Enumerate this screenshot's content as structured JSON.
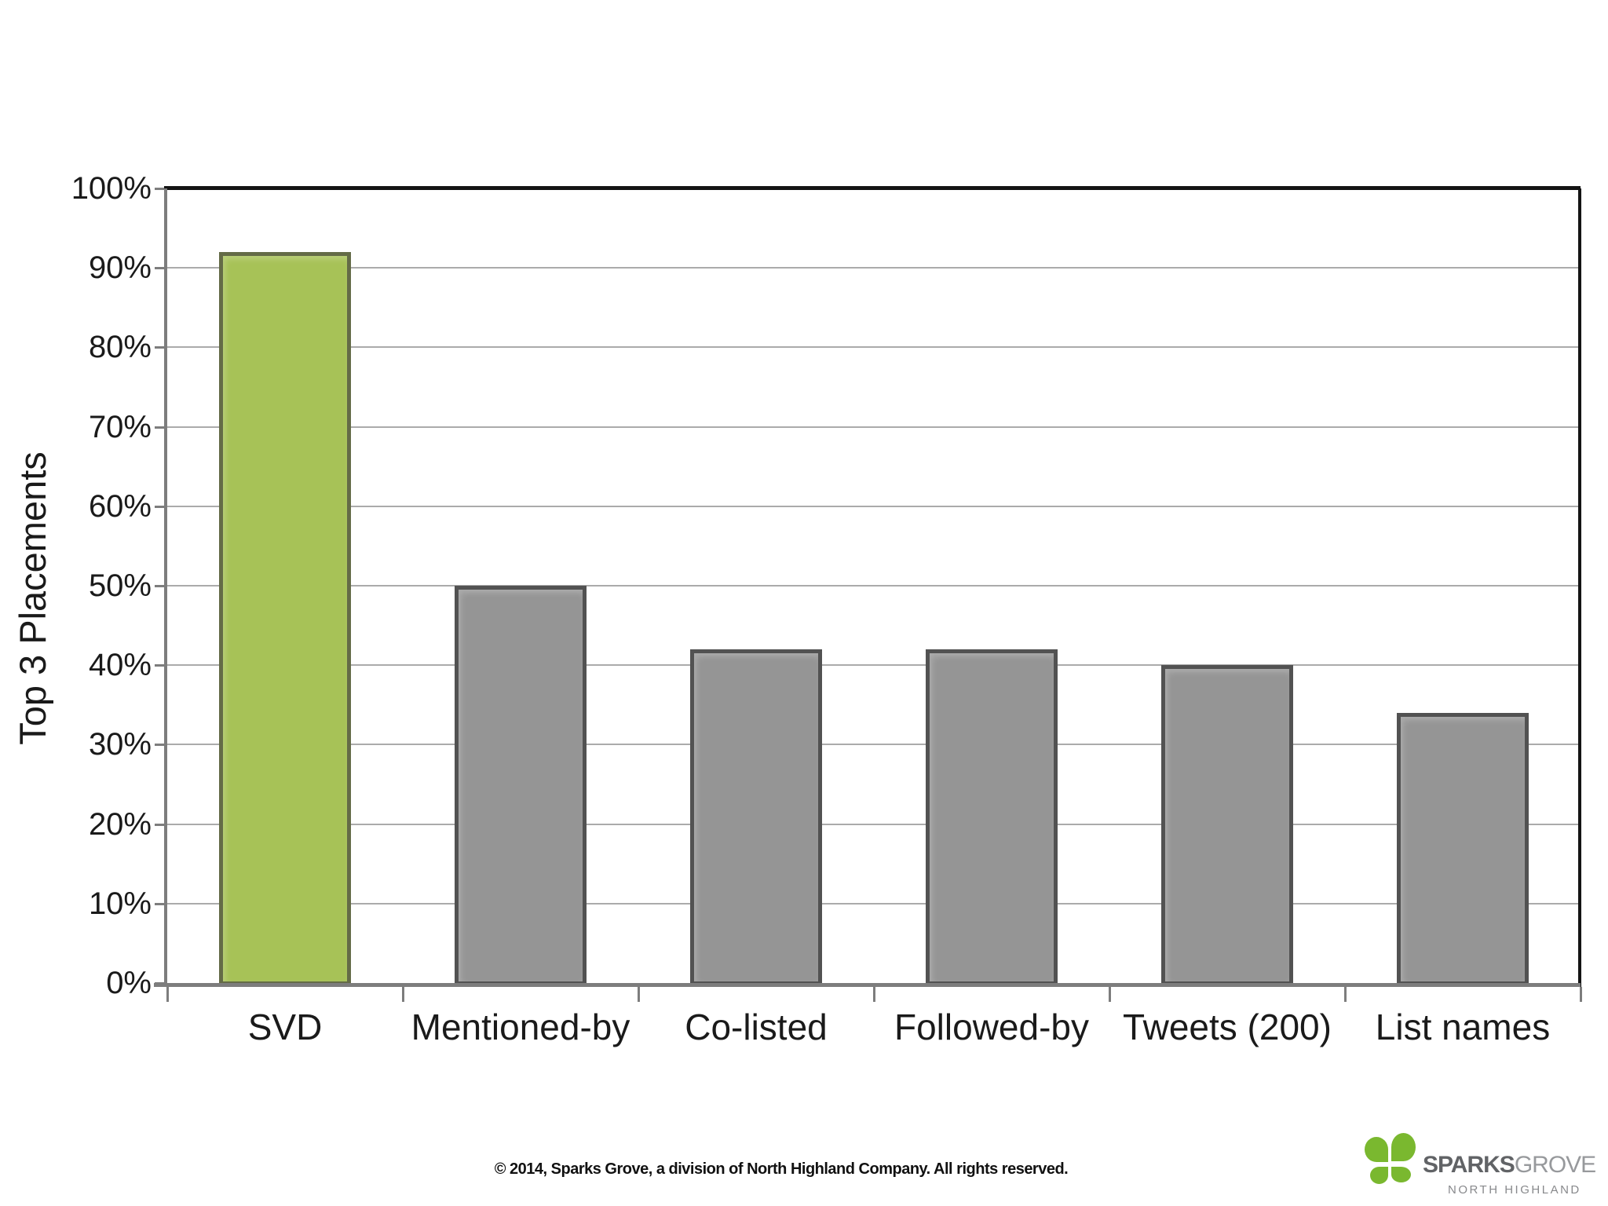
{
  "page": {
    "background": "#ffffff"
  },
  "chart_data": {
    "type": "bar",
    "categories": [
      "SVD",
      "Mentioned-by",
      "Co-listed",
      "Followed-by",
      "Tweets (200)",
      "List names"
    ],
    "values": [
      92,
      50,
      42,
      42,
      40,
      34
    ],
    "unit": "%",
    "title": "",
    "xlabel": "",
    "ylabel": "Top 3 Placements",
    "ylim": [
      0,
      100
    ],
    "ytick_step": 10,
    "ytick_labels": [
      "0%",
      "10%",
      "20%",
      "30%",
      "40%",
      "50%",
      "60%",
      "70%",
      "80%",
      "90%",
      "100%"
    ],
    "grid": "horizontal",
    "legend": "none",
    "highlight_category": "SVD",
    "colors": {
      "highlight_fill": "#a7c257",
      "highlight_border": "#646b47",
      "default_fill": "#959595",
      "default_border": "#525252",
      "gridline": "#ababab",
      "axis": "#7d7d7d",
      "frame": "#141414",
      "label_text": "#1a1a1a"
    }
  },
  "footer": {
    "copyright": "© 2014, Sparks Grove, a division of North Highland Company. All rights reserved."
  },
  "logo": {
    "brand_bold": "SPARKS",
    "brand_light": "GROVE",
    "subtitle": "NORTH HIGHLAND",
    "icon": "clover-leaf-icon",
    "icon_color": "#7ab82f",
    "brand_bold_color": "#616366",
    "brand_light_color": "#97999c",
    "subtitle_color": "#88898c"
  }
}
